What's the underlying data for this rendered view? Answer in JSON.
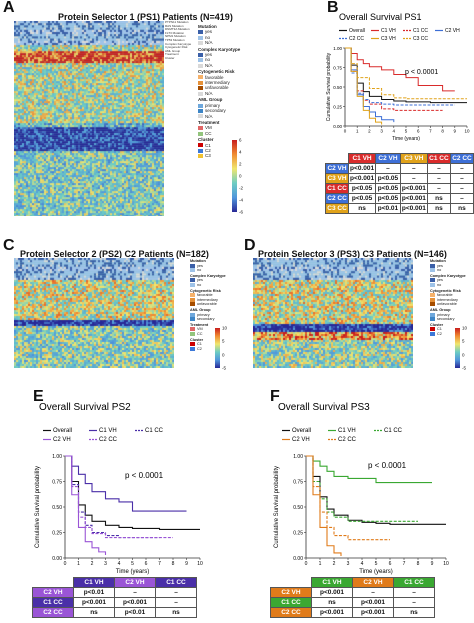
{
  "panels": {
    "A": {
      "label": "A",
      "title": "Protein Selector 1 (PS1) Patients (N=419)"
    },
    "B": {
      "label": "B"
    },
    "C": {
      "label": "C",
      "title": "Protein Selector 2 (PS2) C2 Patients (N=182)"
    },
    "D": {
      "label": "D",
      "title": "Protein Selector 3 (PS3) C3 Patients (N=146)"
    },
    "E": {
      "label": "E"
    },
    "F": {
      "label": "F"
    }
  },
  "heatmap_A": {
    "annotation_rows": [
      "PTPN11 Mutation",
      "RAS Mutation",
      "DNMT3A Mutation",
      "FLT3 Mutation",
      "NPM1 Mutation",
      "TP53 Mutation",
      "Complex Karyotype",
      "Cytogenetic Risk",
      "AML Group",
      "Treatment",
      "Cluster"
    ],
    "legend": [
      {
        "header": "Mutation",
        "items": [
          {
            "label": "yes",
            "color": "#3a5fa8"
          },
          {
            "label": "no",
            "color": "#9fc3e8"
          },
          {
            "label": "N/A",
            "color": "#d9d9d9"
          }
        ]
      },
      {
        "header": "Complex Karyotype",
        "items": [
          {
            "label": "yes",
            "color": "#3a5fa8"
          },
          {
            "label": "no",
            "color": "#9fc3e8"
          },
          {
            "label": "N/A",
            "color": "#d9d9d9"
          }
        ]
      },
      {
        "header": "Cytogenetic Risk",
        "items": [
          {
            "label": "favorable",
            "color": "#f6b26b"
          },
          {
            "label": "intermediary",
            "color": "#e69138"
          },
          {
            "label": "unfavorable",
            "color": "#a64d00"
          },
          {
            "label": "N/A",
            "color": "#d9d9d9"
          }
        ]
      },
      {
        "header": "AML Group",
        "items": [
          {
            "label": "primary",
            "color": "#6fa8dc"
          },
          {
            "label": "secondary",
            "color": "#3d85c6"
          },
          {
            "label": "N/A",
            "color": "#d9d9d9"
          }
        ]
      },
      {
        "header": "Treatment",
        "items": [
          {
            "label": "VM",
            "color": "#e06666"
          },
          {
            "label": "CC",
            "color": "#93c47d"
          }
        ]
      },
      {
        "header": "Cluster",
        "items": [
          {
            "label": "C1",
            "color": "#cc0000"
          },
          {
            "label": "C2",
            "color": "#3c78d8"
          },
          {
            "label": "C3",
            "color": "#f1c232"
          }
        ]
      }
    ],
    "scale_ticks": [
      "6",
      "4",
      "2",
      "0",
      "-2",
      "-4",
      "-6"
    ]
  },
  "heatmap_C": {
    "legend": [
      {
        "header": "Mutation",
        "items": [
          {
            "label": "yes",
            "color": "#3a5fa8"
          },
          {
            "label": "no",
            "color": "#9fc3e8"
          }
        ]
      },
      {
        "header": "Complex Karyotype",
        "items": [
          {
            "label": "yes",
            "color": "#3a5fa8"
          },
          {
            "label": "no",
            "color": "#9fc3e8"
          }
        ]
      },
      {
        "header": "Cytogenetic Risk",
        "items": [
          {
            "label": "favorable",
            "color": "#f6b26b"
          },
          {
            "label": "intermediary",
            "color": "#e69138"
          },
          {
            "label": "unfavorable",
            "color": "#a64d00"
          }
        ]
      },
      {
        "header": "AML Group",
        "items": [
          {
            "label": "primary",
            "color": "#6fa8dc"
          },
          {
            "label": "secondary",
            "color": "#3d85c6"
          }
        ]
      },
      {
        "header": "Treatment",
        "items": [
          {
            "label": "VM",
            "color": "#e06666"
          },
          {
            "label": "CC",
            "color": "#93c47d"
          }
        ]
      },
      {
        "header": "Cluster",
        "items": [
          {
            "label": "C1",
            "color": "#cc0000"
          },
          {
            "label": "C2",
            "color": "#3c78d8"
          }
        ]
      }
    ],
    "scale_ticks": [
      "10",
      "5",
      "0",
      "-5"
    ]
  },
  "heatmap_D": {
    "legend": [
      {
        "header": "Mutation",
        "items": [
          {
            "label": "yes",
            "color": "#3a5fa8"
          },
          {
            "label": "no",
            "color": "#9fc3e8"
          }
        ]
      },
      {
        "header": "Complex Karyotype",
        "items": [
          {
            "label": "yes",
            "color": "#3a5fa8"
          },
          {
            "label": "no",
            "color": "#9fc3e8"
          }
        ]
      },
      {
        "header": "Cytogenetic Risk",
        "items": [
          {
            "label": "favorable",
            "color": "#f6b26b"
          },
          {
            "label": "intermediary",
            "color": "#e69138"
          },
          {
            "label": "unfavorable",
            "color": "#a64d00"
          }
        ]
      },
      {
        "header": "AML Group",
        "items": [
          {
            "label": "primary",
            "color": "#6fa8dc"
          },
          {
            "label": "secondary",
            "color": "#3d85c6"
          }
        ]
      },
      {
        "header": "Cluster",
        "items": [
          {
            "label": "C1",
            "color": "#cc0000"
          },
          {
            "label": "C2",
            "color": "#3c78d8"
          }
        ]
      }
    ],
    "scale_ticks": [
      "10",
      "5",
      "0",
      "-5"
    ]
  },
  "chart_data": [
    {
      "id": "B",
      "type": "line",
      "title": "Overall Survival PS1",
      "xlabel": "Time (years)",
      "ylabel": "Cumulative Survival probability",
      "xlim": [
        0,
        10
      ],
      "ylim": [
        0,
        1
      ],
      "xticks": [
        0,
        1,
        2,
        3,
        4,
        5,
        6,
        7,
        8,
        9,
        10
      ],
      "yticks": [
        0,
        0.25,
        0.5,
        0.75,
        1.0
      ],
      "pvalue": "p < 0.0001",
      "series": [
        {
          "name": "Overall",
          "color": "#111111",
          "style": "solid",
          "x": [
            0,
            0.5,
            1,
            1.5,
            2,
            3,
            4,
            5,
            6,
            7,
            8,
            9,
            10
          ],
          "y": [
            1,
            0.78,
            0.55,
            0.44,
            0.38,
            0.34,
            0.32,
            0.31,
            0.31,
            0.3,
            0.3,
            0.3,
            0.3
          ]
        },
        {
          "name": "C1 VH",
          "color": "#d92b2b",
          "style": "solid",
          "x": [
            0,
            0.5,
            1,
            1.5,
            2,
            3,
            4,
            5,
            6,
            7,
            8,
            9
          ],
          "y": [
            1,
            0.93,
            0.85,
            0.8,
            0.76,
            0.72,
            0.66,
            0.62,
            0.52,
            0.52,
            0.45,
            0.45
          ]
        },
        {
          "name": "C1 CC",
          "color": "#d92b2b",
          "style": "dashed",
          "x": [
            0,
            0.5,
            1,
            1.5,
            2,
            3,
            4,
            5,
            6,
            7,
            8
          ],
          "y": [
            1,
            0.7,
            0.45,
            0.33,
            0.28,
            0.22,
            0.2,
            0.2,
            0.2,
            0.2,
            0.2
          ]
        },
        {
          "name": "C2 VH",
          "color": "#3d6fd6",
          "style": "solid",
          "x": [
            0,
            0.5,
            1,
            1.5,
            2,
            2.5,
            3,
            4
          ],
          "y": [
            1,
            0.72,
            0.4,
            0.25,
            0.18,
            0.12,
            0.08,
            0.05
          ]
        },
        {
          "name": "C2 CC",
          "color": "#3d6fd6",
          "style": "dashed",
          "x": [
            0,
            0.5,
            1,
            1.5,
            2,
            3,
            4,
            5,
            6,
            7,
            8,
            9
          ],
          "y": [
            1,
            0.68,
            0.42,
            0.34,
            0.3,
            0.28,
            0.27,
            0.27,
            0.27,
            0.27,
            0.27,
            0.27
          ]
        },
        {
          "name": "C3 VH",
          "color": "#e0a21a",
          "style": "solid",
          "x": [
            0,
            0.5,
            1,
            1.5,
            2,
            2.5,
            3
          ],
          "y": [
            1,
            0.7,
            0.38,
            0.2,
            0.1,
            0.05,
            0.02
          ]
        },
        {
          "name": "C3 CC",
          "color": "#e0a21a",
          "style": "dashed",
          "x": [
            0,
            0.5,
            1,
            2,
            3,
            4,
            5,
            6,
            7,
            8,
            9,
            10
          ],
          "y": [
            1,
            0.8,
            0.62,
            0.48,
            0.4,
            0.36,
            0.35,
            0.35,
            0.35,
            0.35,
            0.35,
            0.35
          ]
        }
      ]
    },
    {
      "id": "E",
      "type": "line",
      "title": "Overall Survival PS2",
      "xlabel": "Time (years)",
      "ylabel": "Cumulative Survival probability",
      "xlim": [
        0,
        10
      ],
      "ylim": [
        0,
        1
      ],
      "xticks": [
        0,
        1,
        2,
        3,
        4,
        5,
        6,
        7,
        8,
        9,
        10
      ],
      "yticks": [
        0,
        0.25,
        0.5,
        0.75,
        1.0
      ],
      "pvalue": "p < 0.0001",
      "series": [
        {
          "name": "Overall",
          "color": "#111111",
          "style": "solid",
          "x": [
            0,
            0.5,
            1,
            1.5,
            2,
            3,
            4,
            5,
            6,
            7,
            8,
            9,
            10
          ],
          "y": [
            1,
            0.75,
            0.52,
            0.42,
            0.36,
            0.32,
            0.3,
            0.29,
            0.29,
            0.28,
            0.28,
            0.28,
            0.28
          ]
        },
        {
          "name": "C1 VH",
          "color": "#4a2fa8",
          "style": "solid",
          "x": [
            0,
            0.5,
            1,
            1.5,
            2,
            3,
            4,
            5,
            6,
            7,
            8,
            9
          ],
          "y": [
            1,
            0.9,
            0.82,
            0.73,
            0.65,
            0.58,
            0.55,
            0.46,
            0.46,
            0.46,
            0.46,
            0.46
          ]
        },
        {
          "name": "C1 CC",
          "color": "#4a2fa8",
          "style": "dashed",
          "x": [
            0,
            0.5,
            1,
            1.5,
            2,
            3,
            4,
            5,
            6,
            7
          ],
          "y": [
            1,
            0.72,
            0.45,
            0.32,
            0.25,
            0.22,
            0.2,
            0.2,
            0.2,
            0.2
          ]
        },
        {
          "name": "C2 VH",
          "color": "#9a55d6",
          "style": "solid",
          "x": [
            0,
            0.5,
            1,
            1.5,
            2,
            2.5,
            3
          ],
          "y": [
            1,
            0.62,
            0.3,
            0.16,
            0.1,
            0.06,
            0.03
          ]
        },
        {
          "name": "C2 CC",
          "color": "#9a55d6",
          "style": "dashed",
          "x": [
            0,
            0.5,
            1,
            1.5,
            2,
            3,
            4,
            5,
            6,
            7,
            8
          ],
          "y": [
            1,
            0.7,
            0.4,
            0.3,
            0.24,
            0.2,
            0.2,
            0.2,
            0.2,
            0.2,
            0.2
          ]
        }
      ]
    },
    {
      "id": "F",
      "type": "line",
      "title": "Overall Survival PS3",
      "xlabel": "Time (years)",
      "ylabel": "Cumulative Survival probability",
      "xlim": [
        0,
        10
      ],
      "ylim": [
        0,
        1
      ],
      "xticks": [
        0,
        1,
        2,
        3,
        4,
        5,
        6,
        7,
        8,
        9,
        10
      ],
      "yticks": [
        0,
        0.25,
        0.5,
        0.75,
        1.0
      ],
      "pvalue": "p < 0.0001",
      "series": [
        {
          "name": "Overall",
          "color": "#111111",
          "style": "solid",
          "x": [
            0,
            0.5,
            1,
            1.5,
            2,
            3,
            4,
            5,
            6,
            7,
            8,
            9,
            10
          ],
          "y": [
            1,
            0.8,
            0.6,
            0.48,
            0.42,
            0.37,
            0.35,
            0.34,
            0.33,
            0.33,
            0.33,
            0.33,
            0.33
          ]
        },
        {
          "name": "C1 VH",
          "color": "#3aa832",
          "style": "solid",
          "x": [
            0,
            0.5,
            1,
            1.5,
            2,
            3,
            4,
            5,
            6,
            7,
            8,
            9
          ],
          "y": [
            1,
            0.95,
            0.9,
            0.85,
            0.8,
            0.78,
            0.78,
            0.74,
            0.74,
            0.74,
            0.74,
            0.74
          ]
        },
        {
          "name": "C1 CC",
          "color": "#3aa832",
          "style": "dashed",
          "x": [
            0,
            0.5,
            1,
            1.5,
            2,
            3,
            4,
            5,
            6,
            7,
            8
          ],
          "y": [
            1,
            0.75,
            0.58,
            0.45,
            0.4,
            0.36,
            0.36,
            0.36,
            0.36,
            0.36,
            0.36
          ]
        },
        {
          "name": "C2 VH",
          "color": "#e07b1a",
          "style": "solid",
          "x": [
            0,
            0.5,
            1,
            1.5,
            2,
            2.5
          ],
          "y": [
            1,
            0.62,
            0.3,
            0.12,
            0.05,
            0.02
          ]
        },
        {
          "name": "C2 CC",
          "color": "#e07b1a",
          "style": "dashed",
          "x": [
            0,
            0.5,
            1,
            1.5,
            2,
            3,
            4,
            5,
            6
          ],
          "y": [
            1,
            0.7,
            0.45,
            0.3,
            0.22,
            0.18,
            0.18,
            0.18,
            0.18
          ]
        }
      ]
    }
  ],
  "tables": {
    "B": {
      "cols": [
        {
          "label": "C1 VH",
          "color": "#d92b2b"
        },
        {
          "label": "C2 VH",
          "color": "#3d6fd6"
        },
        {
          "label": "C3 VH",
          "color": "#e0a21a"
        },
        {
          "label": "C1 CC",
          "color": "#d92b2b"
        },
        {
          "label": "C2 CC",
          "color": "#3d6fd6"
        }
      ],
      "rows": [
        {
          "label": "C2 VH",
          "color": "#3d6fd6",
          "cells": [
            "p<0.001",
            "–",
            "–",
            "–",
            "–"
          ]
        },
        {
          "label": "C3 VH",
          "color": "#e0a21a",
          "cells": [
            "p<0.001",
            "p<0.05",
            "–",
            "–",
            "–"
          ]
        },
        {
          "label": "C1 CC",
          "color": "#d92b2b",
          "cells": [
            "p<0.05",
            "p<0.05",
            "p<0.001",
            "–",
            "–"
          ]
        },
        {
          "label": "C2 CC",
          "color": "#3d6fd6",
          "cells": [
            "p<0.05",
            "p<0.05",
            "p<0.001",
            "ns",
            "–"
          ]
        },
        {
          "label": "C3 CC",
          "color": "#e0a21a",
          "cells": [
            "ns",
            "p<0.01",
            "p<0.001",
            "ns",
            "ns"
          ]
        }
      ]
    },
    "E": {
      "cols": [
        {
          "label": "C1 VH",
          "color": "#4a2fa8"
        },
        {
          "label": "C2 VH",
          "color": "#9a55d6"
        },
        {
          "label": "C1 CC",
          "color": "#4a2fa8"
        }
      ],
      "rows": [
        {
          "label": "C2 VH",
          "color": "#9a55d6",
          "cells": [
            "p<0.01",
            "–",
            "–"
          ]
        },
        {
          "label": "C1 CC",
          "color": "#4a2fa8",
          "cells": [
            "p<0.001",
            "p<0.001",
            "–"
          ]
        },
        {
          "label": "C2 CC",
          "color": "#9a55d6",
          "cells": [
            "ns",
            "p<0.01",
            "ns"
          ]
        }
      ]
    },
    "F": {
      "cols": [
        {
          "label": "C1 VH",
          "color": "#3aa832"
        },
        {
          "label": "C2 VH",
          "color": "#e07b1a"
        },
        {
          "label": "C1 CC",
          "color": "#3aa832"
        }
      ],
      "rows": [
        {
          "label": "C2 VH",
          "color": "#e07b1a",
          "cells": [
            "p<0.001",
            "–",
            "–"
          ]
        },
        {
          "label": "C1 CC",
          "color": "#3aa832",
          "cells": [
            "ns",
            "p<0.001",
            "–"
          ]
        },
        {
          "label": "C2 CC",
          "color": "#e07b1a",
          "cells": [
            "p<0.001",
            "p<0.001",
            "ns"
          ]
        }
      ]
    }
  }
}
